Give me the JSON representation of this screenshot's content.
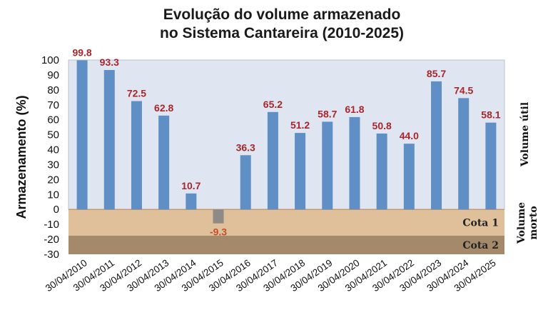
{
  "chart_data": {
    "type": "bar",
    "title": [
      "Evolução do volume armazenado",
      "no Sistema Cantareira (2010-2025)"
    ],
    "xlabel": "",
    "ylabel": "Armazenamento (%)",
    "ylim": [
      -30,
      100
    ],
    "yticks": [
      100,
      90,
      80,
      70,
      60,
      50,
      40,
      30,
      20,
      10,
      0,
      -10,
      -20,
      -30
    ],
    "categories": [
      "30/04/2010",
      "30/04/2011",
      "30/04/2012",
      "30/04/2013",
      "30/04/2014",
      "30/04/2015",
      "30/04/2016",
      "30/04/2017",
      "30/04/2018",
      "30/04/2019",
      "30/04/2020",
      "30/04/2021",
      "30/04/2022",
      "30/04/2023",
      "30/04/2024",
      "30/04/2025"
    ],
    "values": [
      99.8,
      93.3,
      72.5,
      62.8,
      10.7,
      -9.3,
      36.3,
      65.2,
      51.2,
      58.7,
      61.8,
      50.8,
      44.0,
      85.7,
      74.5,
      58.1
    ],
    "data_labels": [
      "99.8",
      "93.3",
      "72.5",
      "62.8",
      "10.7",
      "-9.3",
      "36.3",
      "65.2",
      "51.2",
      "58.7",
      "61.8",
      "50.8",
      "44.0",
      "85.7",
      "74.5",
      "58.1"
    ],
    "zones": [
      {
        "label": "Cota 1",
        "from": 0,
        "to": -17.5,
        "color": "#dfc09a"
      },
      {
        "label": "Cota 2",
        "from": -17.5,
        "to": -30,
        "color": "#a5896b"
      }
    ],
    "side_labels": {
      "useful": "Volume útil",
      "dead": [
        "Volume",
        "morto"
      ]
    },
    "colors": {
      "positive_bar": "#5f8fc5",
      "negative_bar": "#8e8a86",
      "plot_bg": "#dfe6f1",
      "label": "#a8262c"
    },
    "grid": false
  }
}
